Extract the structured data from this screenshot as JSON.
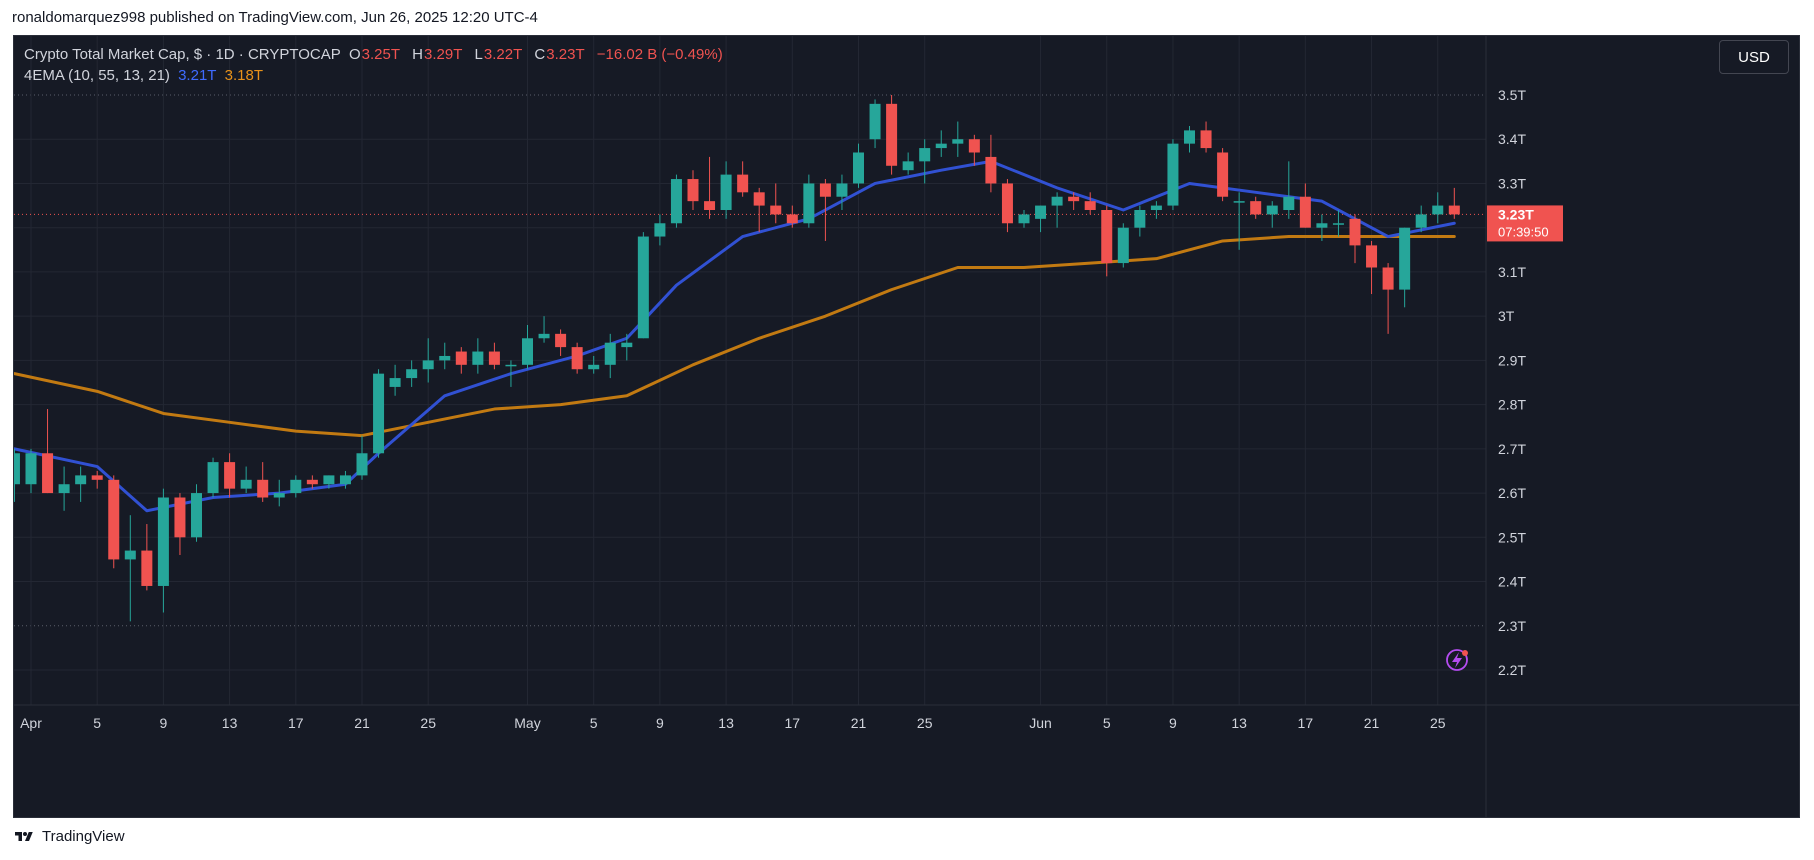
{
  "publisher_line": "ronaldomarquez998 published on TradingView.com, Jun 26, 2025 12:20 UTC-4",
  "footer": {
    "brand": "TradingView"
  },
  "legend": {
    "symbol": "Crypto Total Market Cap, $ · 1D · CRYPTOCAP",
    "open_label": "O",
    "open": "3.25T",
    "high_label": "H",
    "high": "3.29T",
    "low_label": "L",
    "low": "3.22T",
    "close_label": "C",
    "close": "3.23T",
    "change": "−16.02 B (−0.49%)",
    "indicator": "4EMA (10, 55, 13, 21)",
    "ema_fast_value": "3.21T",
    "ema_slow_value": "3.18T"
  },
  "currency_button": "USD",
  "price_tag": {
    "value": "3.23T",
    "countdown": "07:39:50"
  },
  "colors": {
    "background": "#161a25",
    "up": "#26a69a",
    "down": "#f05350",
    "ema_fast": "#3151d3",
    "ema_slow": "#c27a12",
    "grid": "#232733",
    "axis_text": "#d1d4dc"
  },
  "chart_data": {
    "type": "candlestick",
    "y_unit": "T",
    "ylim": [
      2.2,
      3.5
    ],
    "y_ticks": [
      2.2,
      2.3,
      2.4,
      2.5,
      2.6,
      2.7,
      2.8,
      2.9,
      3.0,
      3.1,
      3.2,
      3.3,
      3.4,
      3.5
    ],
    "y_tick_labels": [
      "2.2T",
      "2.3T",
      "2.4T",
      "2.5T",
      "2.6T",
      "2.7T",
      "2.8T",
      "2.9T",
      "3T",
      "3.1T",
      "3.2T",
      "3.3T",
      "3.4T",
      "3.5T"
    ],
    "x_tick_labels": [
      {
        "date": "2025-04-01",
        "label": "Apr"
      },
      {
        "date": "2025-04-05",
        "label": "5"
      },
      {
        "date": "2025-04-09",
        "label": "9"
      },
      {
        "date": "2025-04-13",
        "label": "13"
      },
      {
        "date": "2025-04-17",
        "label": "17"
      },
      {
        "date": "2025-04-21",
        "label": "21"
      },
      {
        "date": "2025-04-25",
        "label": "25"
      },
      {
        "date": "2025-05-01",
        "label": "May"
      },
      {
        "date": "2025-05-05",
        "label": "5"
      },
      {
        "date": "2025-05-09",
        "label": "9"
      },
      {
        "date": "2025-05-13",
        "label": "13"
      },
      {
        "date": "2025-05-17",
        "label": "17"
      },
      {
        "date": "2025-05-21",
        "label": "21"
      },
      {
        "date": "2025-05-25",
        "label": "25"
      },
      {
        "date": "2025-06-01",
        "label": "Jun"
      },
      {
        "date": "2025-06-05",
        "label": "5"
      },
      {
        "date": "2025-06-09",
        "label": "9"
      },
      {
        "date": "2025-06-13",
        "label": "13"
      },
      {
        "date": "2025-06-17",
        "label": "17"
      },
      {
        "date": "2025-06-21",
        "label": "21"
      },
      {
        "date": "2025-06-25",
        "label": "25"
      }
    ],
    "candles": [
      {
        "date": "2025-03-31",
        "o": 2.62,
        "h": 2.7,
        "l": 2.58,
        "c": 2.69
      },
      {
        "date": "2025-04-01",
        "o": 2.62,
        "h": 2.7,
        "l": 2.6,
        "c": 2.69
      },
      {
        "date": "2025-04-02",
        "o": 2.69,
        "h": 2.79,
        "l": 2.6,
        "c": 2.6
      },
      {
        "date": "2025-04-03",
        "o": 2.6,
        "h": 2.66,
        "l": 2.56,
        "c": 2.62
      },
      {
        "date": "2025-04-04",
        "o": 2.62,
        "h": 2.66,
        "l": 2.58,
        "c": 2.64
      },
      {
        "date": "2025-04-05",
        "o": 2.64,
        "h": 2.65,
        "l": 2.61,
        "c": 2.63
      },
      {
        "date": "2025-04-06",
        "o": 2.63,
        "h": 2.64,
        "l": 2.43,
        "c": 2.45
      },
      {
        "date": "2025-04-07",
        "o": 2.45,
        "h": 2.55,
        "l": 2.31,
        "c": 2.47
      },
      {
        "date": "2025-04-08",
        "o": 2.47,
        "h": 2.53,
        "l": 2.38,
        "c": 2.39
      },
      {
        "date": "2025-04-09",
        "o": 2.39,
        "h": 2.61,
        "l": 2.33,
        "c": 2.59
      },
      {
        "date": "2025-04-10",
        "o": 2.59,
        "h": 2.6,
        "l": 2.46,
        "c": 2.5
      },
      {
        "date": "2025-04-11",
        "o": 2.5,
        "h": 2.62,
        "l": 2.49,
        "c": 2.6
      },
      {
        "date": "2025-04-12",
        "o": 2.6,
        "h": 2.68,
        "l": 2.59,
        "c": 2.67
      },
      {
        "date": "2025-04-13",
        "o": 2.67,
        "h": 2.69,
        "l": 2.59,
        "c": 2.61
      },
      {
        "date": "2025-04-14",
        "o": 2.61,
        "h": 2.66,
        "l": 2.6,
        "c": 2.63
      },
      {
        "date": "2025-04-15",
        "o": 2.63,
        "h": 2.67,
        "l": 2.58,
        "c": 2.59
      },
      {
        "date": "2025-04-16",
        "o": 2.59,
        "h": 2.63,
        "l": 2.57,
        "c": 2.6
      },
      {
        "date": "2025-04-17",
        "o": 2.6,
        "h": 2.64,
        "l": 2.59,
        "c": 2.63
      },
      {
        "date": "2025-04-18",
        "o": 2.63,
        "h": 2.64,
        "l": 2.61,
        "c": 2.62
      },
      {
        "date": "2025-04-19",
        "o": 2.62,
        "h": 2.64,
        "l": 2.61,
        "c": 2.64
      },
      {
        "date": "2025-04-20",
        "o": 2.62,
        "h": 2.65,
        "l": 2.61,
        "c": 2.64
      },
      {
        "date": "2025-04-21",
        "o": 2.64,
        "h": 2.73,
        "l": 2.63,
        "c": 2.69
      },
      {
        "date": "2025-04-22",
        "o": 2.69,
        "h": 2.88,
        "l": 2.68,
        "c": 2.87
      },
      {
        "date": "2025-04-23",
        "o": 2.84,
        "h": 2.89,
        "l": 2.82,
        "c": 2.86
      },
      {
        "date": "2025-04-24",
        "o": 2.86,
        "h": 2.9,
        "l": 2.84,
        "c": 2.88
      },
      {
        "date": "2025-04-25",
        "o": 2.88,
        "h": 2.95,
        "l": 2.85,
        "c": 2.9
      },
      {
        "date": "2025-04-26",
        "o": 2.9,
        "h": 2.94,
        "l": 2.88,
        "c": 2.91
      },
      {
        "date": "2025-04-27",
        "o": 2.92,
        "h": 2.93,
        "l": 2.87,
        "c": 2.89
      },
      {
        "date": "2025-04-28",
        "o": 2.89,
        "h": 2.95,
        "l": 2.87,
        "c": 2.92
      },
      {
        "date": "2025-04-29",
        "o": 2.92,
        "h": 2.94,
        "l": 2.88,
        "c": 2.89
      },
      {
        "date": "2025-04-30",
        "o": 2.89,
        "h": 2.9,
        "l": 2.84,
        "c": 2.89
      },
      {
        "date": "2025-05-01",
        "o": 2.89,
        "h": 2.98,
        "l": 2.88,
        "c": 2.95
      },
      {
        "date": "2025-05-02",
        "o": 2.95,
        "h": 3.0,
        "l": 2.94,
        "c": 2.96
      },
      {
        "date": "2025-05-03",
        "o": 2.96,
        "h": 2.97,
        "l": 2.91,
        "c": 2.93
      },
      {
        "date": "2025-05-04",
        "o": 2.93,
        "h": 2.94,
        "l": 2.87,
        "c": 2.88
      },
      {
        "date": "2025-05-05",
        "o": 2.88,
        "h": 2.91,
        "l": 2.87,
        "c": 2.89
      },
      {
        "date": "2025-05-06",
        "o": 2.89,
        "h": 2.96,
        "l": 2.86,
        "c": 2.94
      },
      {
        "date": "2025-05-07",
        "o": 2.93,
        "h": 2.96,
        "l": 2.9,
        "c": 2.94
      },
      {
        "date": "2025-05-08",
        "o": 2.95,
        "h": 3.19,
        "l": 2.95,
        "c": 3.18
      },
      {
        "date": "2025-05-09",
        "o": 3.18,
        "h": 3.23,
        "l": 3.16,
        "c": 3.21
      },
      {
        "date": "2025-05-10",
        "o": 3.21,
        "h": 3.32,
        "l": 3.2,
        "c": 3.31
      },
      {
        "date": "2025-05-11",
        "o": 3.31,
        "h": 3.33,
        "l": 3.24,
        "c": 3.26
      },
      {
        "date": "2025-05-12",
        "o": 3.26,
        "h": 3.36,
        "l": 3.22,
        "c": 3.24
      },
      {
        "date": "2025-05-13",
        "o": 3.24,
        "h": 3.35,
        "l": 3.22,
        "c": 3.32
      },
      {
        "date": "2025-05-14",
        "o": 3.32,
        "h": 3.35,
        "l": 3.27,
        "c": 3.28
      },
      {
        "date": "2025-05-15",
        "o": 3.28,
        "h": 3.29,
        "l": 3.19,
        "c": 3.25
      },
      {
        "date": "2025-05-16",
        "o": 3.25,
        "h": 3.3,
        "l": 3.21,
        "c": 3.23
      },
      {
        "date": "2025-05-17",
        "o": 3.23,
        "h": 3.25,
        "l": 3.2,
        "c": 3.21
      },
      {
        "date": "2025-05-18",
        "o": 3.21,
        "h": 3.32,
        "l": 3.2,
        "c": 3.3
      },
      {
        "date": "2025-05-19",
        "o": 3.3,
        "h": 3.31,
        "l": 3.17,
        "c": 3.27
      },
      {
        "date": "2025-05-20",
        "o": 3.27,
        "h": 3.32,
        "l": 3.24,
        "c": 3.3
      },
      {
        "date": "2025-05-21",
        "o": 3.3,
        "h": 3.39,
        "l": 3.29,
        "c": 3.37
      },
      {
        "date": "2025-05-22",
        "o": 3.4,
        "h": 3.49,
        "l": 3.38,
        "c": 3.48
      },
      {
        "date": "2025-05-23",
        "o": 3.48,
        "h": 3.5,
        "l": 3.32,
        "c": 3.34
      },
      {
        "date": "2025-05-24",
        "o": 3.33,
        "h": 3.37,
        "l": 3.32,
        "c": 3.35
      },
      {
        "date": "2025-05-25",
        "o": 3.35,
        "h": 3.4,
        "l": 3.3,
        "c": 3.38
      },
      {
        "date": "2025-05-26",
        "o": 3.38,
        "h": 3.42,
        "l": 3.36,
        "c": 3.39
      },
      {
        "date": "2025-05-27",
        "o": 3.39,
        "h": 3.44,
        "l": 3.36,
        "c": 3.4
      },
      {
        "date": "2025-05-28",
        "o": 3.4,
        "h": 3.41,
        "l": 3.34,
        "c": 3.37
      },
      {
        "date": "2025-05-29",
        "o": 3.36,
        "h": 3.41,
        "l": 3.28,
        "c": 3.3
      },
      {
        "date": "2025-05-30",
        "o": 3.3,
        "h": 3.31,
        "l": 3.19,
        "c": 3.21
      },
      {
        "date": "2025-05-31",
        "o": 3.21,
        "h": 3.24,
        "l": 3.2,
        "c": 3.23
      },
      {
        "date": "2025-06-01",
        "o": 3.22,
        "h": 3.25,
        "l": 3.19,
        "c": 3.25
      },
      {
        "date": "2025-06-02",
        "o": 3.25,
        "h": 3.28,
        "l": 3.2,
        "c": 3.27
      },
      {
        "date": "2025-06-03",
        "o": 3.27,
        "h": 3.28,
        "l": 3.24,
        "c": 3.26
      },
      {
        "date": "2025-06-04",
        "o": 3.26,
        "h": 3.28,
        "l": 3.23,
        "c": 3.24
      },
      {
        "date": "2025-06-05",
        "o": 3.24,
        "h": 3.25,
        "l": 3.09,
        "c": 3.12
      },
      {
        "date": "2025-06-06",
        "o": 3.12,
        "h": 3.21,
        "l": 3.11,
        "c": 3.2
      },
      {
        "date": "2025-06-07",
        "o": 3.2,
        "h": 3.25,
        "l": 3.18,
        "c": 3.24
      },
      {
        "date": "2025-06-08",
        "o": 3.24,
        "h": 3.26,
        "l": 3.22,
        "c": 3.25
      },
      {
        "date": "2025-06-09",
        "o": 3.25,
        "h": 3.4,
        "l": 3.24,
        "c": 3.39
      },
      {
        "date": "2025-06-10",
        "o": 3.39,
        "h": 3.43,
        "l": 3.37,
        "c": 3.42
      },
      {
        "date": "2025-06-11",
        "o": 3.42,
        "h": 3.44,
        "l": 3.37,
        "c": 3.38
      },
      {
        "date": "2025-06-12",
        "o": 3.37,
        "h": 3.38,
        "l": 3.26,
        "c": 3.27
      },
      {
        "date": "2025-06-13",
        "o": 3.26,
        "h": 3.28,
        "l": 3.15,
        "c": 3.26
      },
      {
        "date": "2025-06-14",
        "o": 3.26,
        "h": 3.27,
        "l": 3.22,
        "c": 3.23
      },
      {
        "date": "2025-06-15",
        "o": 3.23,
        "h": 3.26,
        "l": 3.2,
        "c": 3.25
      },
      {
        "date": "2025-06-16",
        "o": 3.24,
        "h": 3.35,
        "l": 3.22,
        "c": 3.27
      },
      {
        "date": "2025-06-17",
        "o": 3.27,
        "h": 3.3,
        "l": 3.2,
        "c": 3.2
      },
      {
        "date": "2025-06-18",
        "o": 3.2,
        "h": 3.23,
        "l": 3.17,
        "c": 3.21
      },
      {
        "date": "2025-06-19",
        "o": 3.21,
        "h": 3.24,
        "l": 3.18,
        "c": 3.21
      },
      {
        "date": "2025-06-20",
        "o": 3.22,
        "h": 3.23,
        "l": 3.12,
        "c": 3.16
      },
      {
        "date": "2025-06-21",
        "o": 3.16,
        "h": 3.17,
        "l": 3.05,
        "c": 3.11
      },
      {
        "date": "2025-06-22",
        "o": 3.11,
        "h": 3.12,
        "l": 2.96,
        "c": 3.06
      },
      {
        "date": "2025-06-23",
        "o": 3.06,
        "h": 3.2,
        "l": 3.02,
        "c": 3.2
      },
      {
        "date": "2025-06-24",
        "o": 3.2,
        "h": 3.25,
        "l": 3.19,
        "c": 3.23
      },
      {
        "date": "2025-06-25",
        "o": 3.23,
        "h": 3.28,
        "l": 3.21,
        "c": 3.25
      },
      {
        "date": "2025-06-26",
        "o": 3.25,
        "h": 3.29,
        "l": 3.22,
        "c": 3.23
      }
    ],
    "series": [
      {
        "name": "EMA fast",
        "dates": [
          "2025-03-31",
          "2025-04-05",
          "2025-04-08",
          "2025-04-12",
          "2025-04-16",
          "2025-04-20",
          "2025-04-22",
          "2025-04-26",
          "2025-04-30",
          "2025-05-04",
          "2025-05-07",
          "2025-05-10",
          "2025-05-14",
          "2025-05-18",
          "2025-05-22",
          "2025-05-26",
          "2025-05-29",
          "2025-06-02",
          "2025-06-06",
          "2025-06-10",
          "2025-06-14",
          "2025-06-18",
          "2025-06-22",
          "2025-06-26"
        ],
        "values": [
          2.7,
          2.66,
          2.56,
          2.59,
          2.6,
          2.62,
          2.69,
          2.82,
          2.87,
          2.91,
          2.95,
          3.07,
          3.18,
          3.22,
          3.3,
          3.33,
          3.35,
          3.29,
          3.24,
          3.3,
          3.28,
          3.26,
          3.18,
          3.21
        ]
      },
      {
        "name": "EMA slow",
        "dates": [
          "2025-03-31",
          "2025-04-05",
          "2025-04-09",
          "2025-04-13",
          "2025-04-17",
          "2025-04-21",
          "2025-04-25",
          "2025-04-29",
          "2025-05-03",
          "2025-05-07",
          "2025-05-11",
          "2025-05-15",
          "2025-05-19",
          "2025-05-23",
          "2025-05-27",
          "2025-05-31",
          "2025-06-04",
          "2025-06-08",
          "2025-06-12",
          "2025-06-16",
          "2025-06-20",
          "2025-06-26"
        ],
        "values": [
          2.87,
          2.83,
          2.78,
          2.76,
          2.74,
          2.73,
          2.76,
          2.79,
          2.8,
          2.82,
          2.89,
          2.95,
          3.0,
          3.06,
          3.11,
          3.11,
          3.12,
          3.13,
          3.17,
          3.18,
          3.18,
          3.18
        ]
      }
    ]
  }
}
